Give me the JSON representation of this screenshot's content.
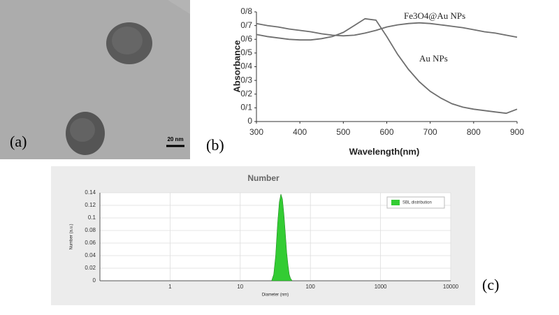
{
  "image_panel": {
    "label": "(a)",
    "scale_bar": "20 nm"
  },
  "chart_data": [
    {
      "type": "line",
      "panel_label": "(b)",
      "x_label": "Wavelength(nm)",
      "y_label": "Absorbance",
      "x": [
        300,
        325,
        350,
        375,
        400,
        425,
        450,
        475,
        500,
        525,
        550,
        575,
        600,
        625,
        650,
        675,
        700,
        725,
        750,
        775,
        800,
        825,
        850,
        875,
        900
      ],
      "series": [
        {
          "name": "Fe3O4@Au NPs",
          "color": "#6e6e6e",
          "values": [
            0.715,
            0.7,
            0.69,
            0.675,
            0.665,
            0.655,
            0.64,
            0.63,
            0.625,
            0.63,
            0.645,
            0.665,
            0.69,
            0.705,
            0.715,
            0.72,
            0.715,
            0.705,
            0.695,
            0.685,
            0.67,
            0.655,
            0.645,
            0.63,
            0.615
          ]
        },
        {
          "name": "Au NPs",
          "color": "#6e6e6e",
          "values": [
            0.635,
            0.62,
            0.61,
            0.6,
            0.595,
            0.595,
            0.605,
            0.62,
            0.65,
            0.7,
            0.75,
            0.74,
            0.62,
            0.49,
            0.38,
            0.29,
            0.22,
            0.17,
            0.13,
            0.105,
            0.09,
            0.08,
            0.07,
            0.06,
            0.09
          ]
        }
      ],
      "xlim": [
        300,
        900
      ],
      "xticks": [
        300,
        400,
        500,
        600,
        700,
        800,
        900
      ],
      "ylim": [
        0,
        0.8
      ],
      "yticks": [
        0,
        {
          "value": 0.1,
          "label": "0/1"
        },
        {
          "value": 0.2,
          "label": "0/2"
        },
        {
          "value": 0.3,
          "label": "0/3"
        },
        {
          "value": 0.4,
          "label": "0/4"
        },
        {
          "value": 0.5,
          "label": "0/5"
        },
        {
          "value": 0.6,
          "label": "0/6"
        },
        {
          "value": 0.7,
          "label": "0/7"
        },
        {
          "value": 0.8,
          "label": "0/8"
        }
      ],
      "grid": false
    },
    {
      "type": "area",
      "panel_label": "(c)",
      "title": "Number",
      "x_label": "Diameter (nm)",
      "y_label": "Number (a.u.)",
      "x": [
        28,
        30,
        32,
        34,
        36,
        38,
        40,
        42,
        44,
        46,
        48,
        50,
        52,
        55
      ],
      "series": [
        {
          "name": "SBL distribution",
          "color": "#33cc33",
          "values": [
            0,
            0.01,
            0.04,
            0.09,
            0.125,
            0.138,
            0.13,
            0.105,
            0.075,
            0.045,
            0.025,
            0.01,
            0.004,
            0
          ]
        }
      ],
      "log_x": true,
      "xlim": [
        0.1,
        10000
      ],
      "xticks": [
        1,
        10,
        100,
        1000,
        10000
      ],
      "ylim": [
        0,
        0.14
      ],
      "yticks": [
        0,
        0.02,
        0.04,
        0.06,
        0.08,
        0.1,
        0.12,
        0.14
      ],
      "grid": true,
      "legend": "upper right"
    }
  ]
}
